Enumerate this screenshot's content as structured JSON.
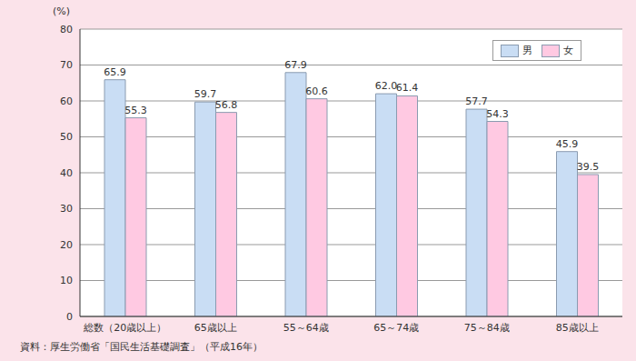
{
  "chart_data": {
    "type": "bar",
    "ylabel": "(%)",
    "note": "資料：厚生労働省「国民生活基礎調査」（平成16年）",
    "categories": [
      "総数（20歳以上）",
      "65歳以上",
      "55～64歳",
      "65～74歳",
      "75～84歳",
      "85歳以上"
    ],
    "series": [
      {
        "name": "男",
        "color": "#c9ddf4",
        "values": [
          65.9,
          59.7,
          67.9,
          62.0,
          57.7,
          45.9
        ],
        "value_labels": [
          "65.9",
          "59.7",
          "67.9",
          "62.0",
          "57.7",
          "45.9"
        ]
      },
      {
        "name": "女",
        "color": "#ffc9e2",
        "values": [
          55.3,
          56.8,
          60.6,
          61.4,
          54.3,
          39.5
        ],
        "value_labels": [
          "55.3",
          "56.8",
          "60.6",
          "61.4",
          "54.3",
          "39.5"
        ]
      }
    ],
    "ylim": [
      0,
      80
    ],
    "yticks": [
      0,
      10,
      20,
      30,
      40,
      50,
      60,
      70,
      80
    ],
    "grid": true,
    "data_labels": true,
    "legend": "upper right"
  }
}
